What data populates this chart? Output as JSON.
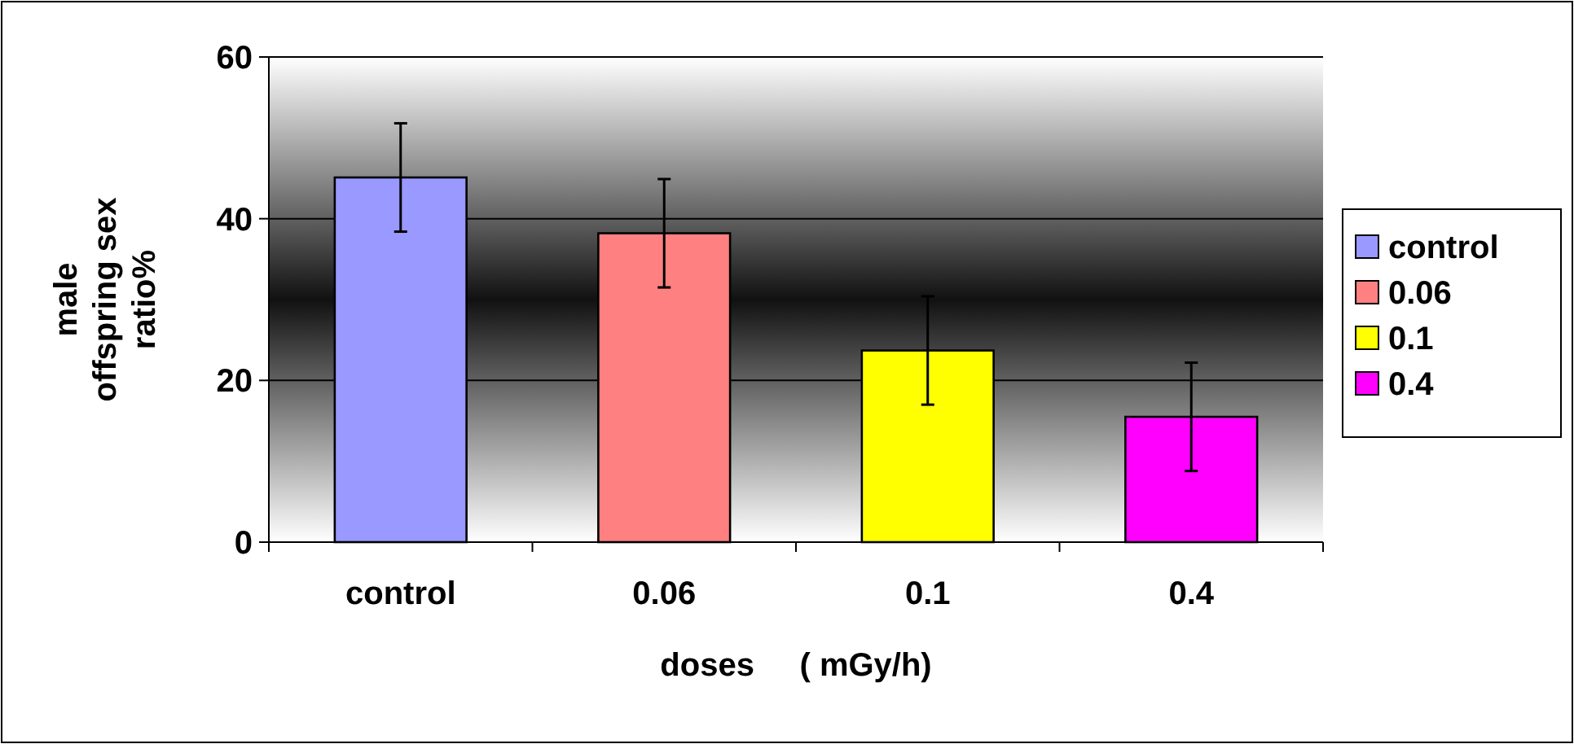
{
  "chart_data": {
    "type": "bar",
    "xlabel": "doses     ( mGy/h)",
    "ylabel": "male offspring sex ratio%",
    "categories": [
      "control",
      "0.06",
      "0.1",
      "0.4"
    ],
    "series": [
      {
        "name": "control",
        "color": "#9999ff",
        "values": [
          45.1,
          null,
          null,
          null
        ],
        "errors": [
          6.7,
          null,
          null,
          null
        ]
      },
      {
        "name": "0.06",
        "color": "#ff8080",
        "values": [
          null,
          38.2,
          null,
          null
        ],
        "errors": [
          null,
          6.7,
          null,
          null
        ]
      },
      {
        "name": "0.1",
        "color": "#ffff00",
        "values": [
          null,
          null,
          23.7,
          null
        ],
        "errors": [
          null,
          null,
          6.7,
          null
        ]
      },
      {
        "name": "0.4",
        "color": "#ff00ff",
        "values": [
          null,
          null,
          null,
          15.5
        ],
        "errors": [
          null,
          null,
          null,
          6.7
        ]
      }
    ],
    "stacked": true,
    "ylim": [
      0,
      60
    ],
    "yticks": [
      0,
      20,
      40,
      60
    ],
    "grid": "y",
    "legend": "right"
  }
}
